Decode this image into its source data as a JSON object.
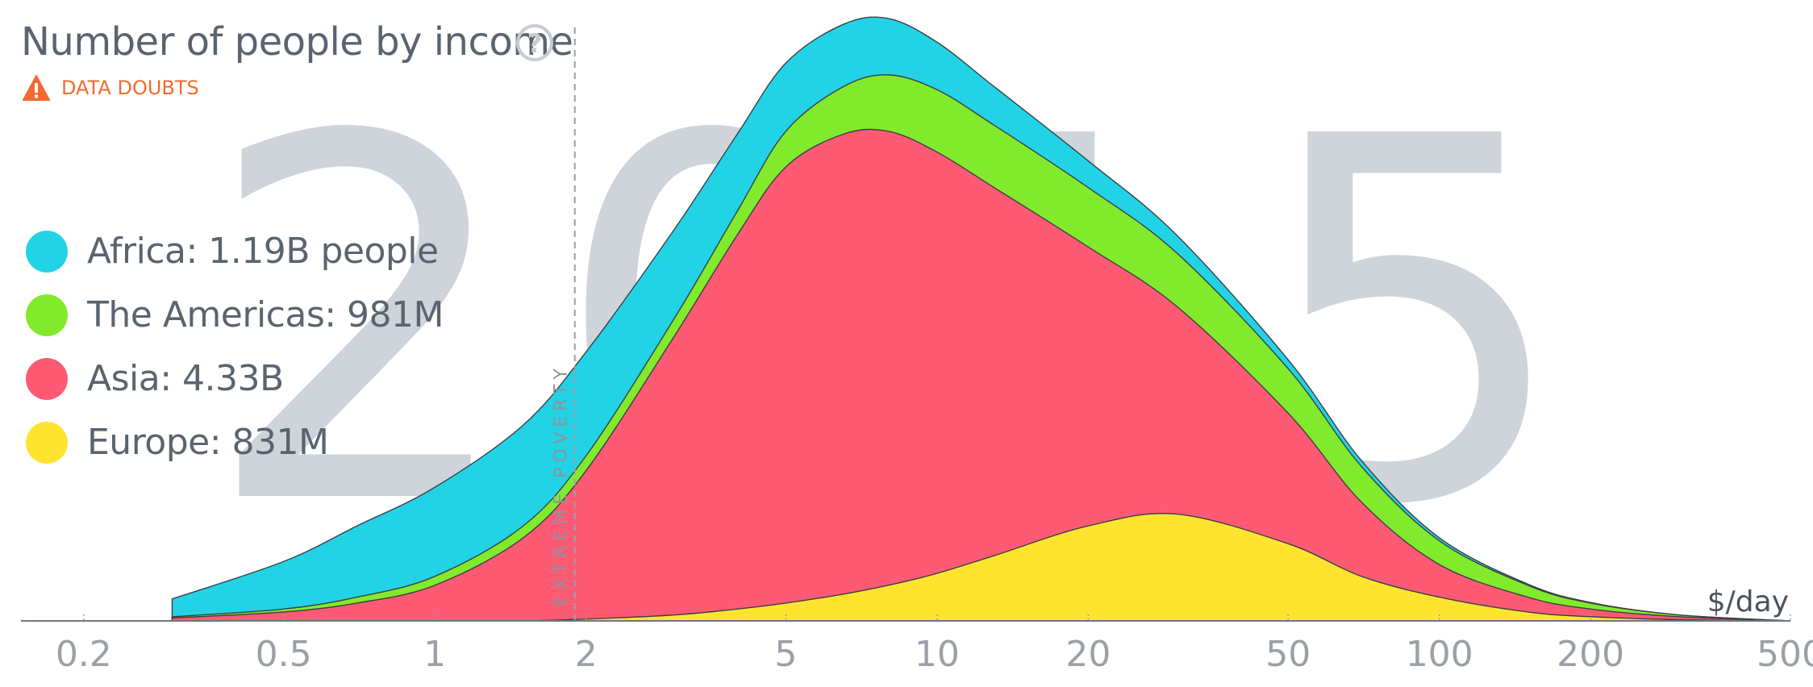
{
  "header": {
    "title": "Number of people by income",
    "help_glyph": "?",
    "data_doubts_label": "DATA DOUBTS"
  },
  "legend": {
    "items": [
      {
        "key": "africa",
        "label": "Africa: 1.19B people",
        "color": "#22d3e6"
      },
      {
        "key": "americas",
        "label": "The Americas: 981M",
        "color": "#82ea2c"
      },
      {
        "key": "asia",
        "label": "Asia: 4.33B",
        "color": "#fe5a74"
      },
      {
        "key": "europe",
        "label": "Europe: 831M",
        "color": "#fee42f"
      }
    ]
  },
  "icons": {
    "help": "question-circle-icon",
    "warning": "warning-triangle-icon",
    "warning_color": "#f26a2e"
  },
  "chart_data": {
    "type": "area",
    "stacked": true,
    "x_scale": "log",
    "xlim": [
      0.15,
      500
    ],
    "x_unit_label": "$/day",
    "x_ticks": [
      0.2,
      0.5,
      1,
      2,
      5,
      10,
      20,
      50,
      100,
      200,
      500
    ],
    "x_tick_labels": [
      "0.2",
      "0.5",
      "1",
      "2",
      "5",
      "10",
      "20",
      "50",
      "100",
      "200",
      "500"
    ],
    "y_axis_visible": false,
    "year_watermark": "2015",
    "extreme_poverty": {
      "x": 1.9,
      "label": "EXTREME POVERTY"
    },
    "x": [
      0.3,
      0.5,
      0.7,
      1,
      1.5,
      2,
      3,
      4,
      5,
      6.5,
      8,
      10,
      13,
      20,
      30,
      50,
      70,
      100,
      150,
      200,
      300,
      500
    ],
    "series": [
      {
        "name": "Europe",
        "color": "#fee42f",
        "values": [
          0,
          0,
          0,
          0,
          0,
          0.3,
          1,
          2,
          3,
          4.5,
          6,
          8,
          11,
          16,
          18,
          13,
          7.5,
          4,
          1.5,
          0.7,
          0.2,
          0
        ]
      },
      {
        "name": "Asia",
        "color": "#fe5a74",
        "values": [
          0.5,
          1.5,
          3,
          6,
          14,
          25,
          47,
          63,
          73.5,
          77.5,
          76.5,
          71,
          62,
          47,
          35,
          22,
          12.5,
          5.5,
          2.5,
          1.3,
          0.5,
          0
        ]
      },
      {
        "name": "The Americas",
        "color": "#82ea2c",
        "values": [
          0.2,
          0.5,
          1,
          1.5,
          2,
          2.5,
          3,
          4,
          6,
          8,
          9.5,
          10.5,
          10.5,
          10,
          9,
          7.5,
          6,
          4,
          2,
          1,
          0.3,
          0
        ]
      },
      {
        "name": "Africa",
        "color": "#22d3e6",
        "values": [
          3,
          8,
          12,
          15,
          17,
          17.5,
          15,
          13,
          11.5,
          10.5,
          9.5,
          8,
          6.5,
          4.5,
          3,
          1.5,
          1,
          0.5,
          0.2,
          0.1,
          0,
          0
        ]
      }
    ]
  }
}
